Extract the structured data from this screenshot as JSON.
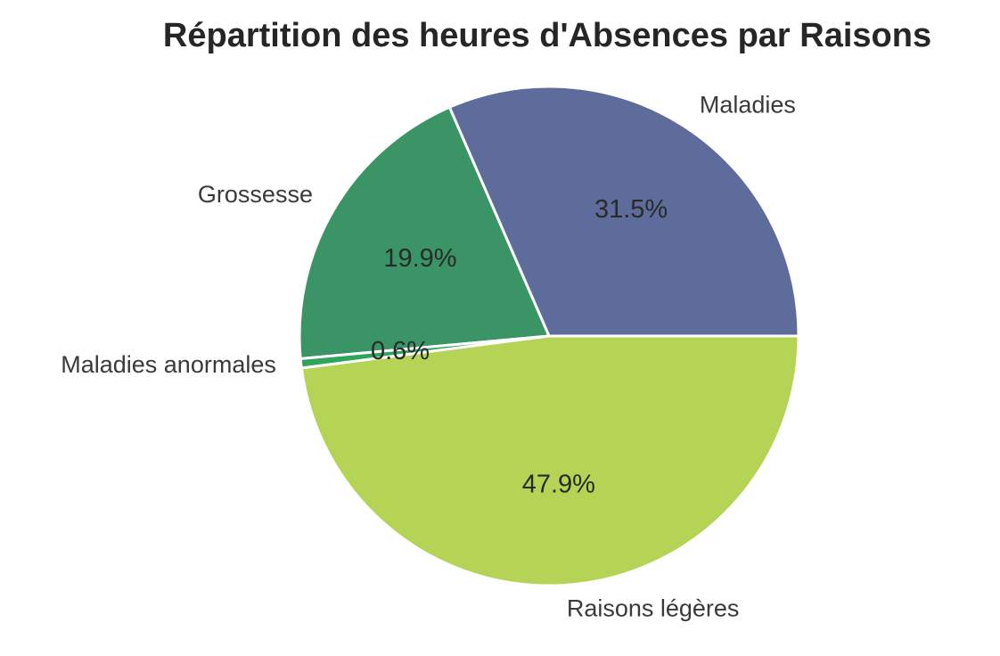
{
  "chart_data": {
    "type": "pie",
    "title": "Répartition des heures d'Absences par Raisons",
    "slices": [
      {
        "label": "Maladies",
        "value": 31.5,
        "pct_label": "31.5%",
        "color": "#5d6c9b"
      },
      {
        "label": "Grossesse",
        "value": 19.9,
        "pct_label": "19.9%",
        "color": "#3a9465"
      },
      {
        "label": "Maladies anormales",
        "value": 0.6,
        "pct_label": "0.6%",
        "color": "#2fa55c"
      },
      {
        "label": "Raisons légères",
        "value": 47.9,
        "pct_label": "47.9%",
        "color": "#b5d455"
      }
    ],
    "start_angle_deg": 0,
    "direction": "counterclockwise",
    "legend": "none"
  }
}
